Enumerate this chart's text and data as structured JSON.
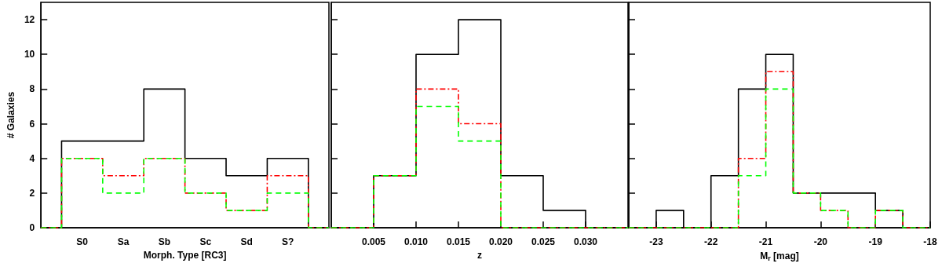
{
  "chart_data": [
    {
      "type": "step",
      "xlabel": "Morph. Type [RC3]",
      "ylabel": "# Galaxies",
      "categories": [
        null,
        "S0",
        "Sa",
        "Sb",
        "Sc",
        "Sd",
        "S?",
        null
      ],
      "ylim": [
        0,
        13
      ],
      "yticks": [
        0,
        2,
        4,
        6,
        8,
        10,
        12
      ],
      "series": [
        {
          "color": "#000000",
          "line_style": "solid",
          "values": [
            0,
            5,
            5,
            8,
            4,
            3,
            4,
            0
          ]
        },
        {
          "color": "#ff0000",
          "line_style": "dashdot",
          "values": [
            0,
            4,
            3,
            4,
            2,
            1,
            3,
            0
          ]
        },
        {
          "color": "#00ff00",
          "line_style": "dashed",
          "values": [
            0,
            4,
            2,
            4,
            2,
            1,
            2,
            0
          ]
        }
      ]
    },
    {
      "type": "histogram",
      "xlabel": "z",
      "bins": [
        0,
        0.005,
        0.01,
        0.015,
        0.02,
        0.025,
        0.03,
        0.035
      ],
      "xlim": [
        0,
        0.035
      ],
      "xticks": [
        0.005,
        {
          "value": 0.01,
          "label": "0.010"
        },
        0.015,
        {
          "value": 0.02,
          "label": "0.020"
        },
        0.025,
        {
          "value": 0.03,
          "label": "0.030"
        }
      ],
      "ylim": [
        0,
        13
      ],
      "yticks": [
        0,
        2,
        4,
        6,
        8,
        10,
        12
      ],
      "tick_labels": "x",
      "series": [
        {
          "color": "#000000",
          "line_style": "solid",
          "values": [
            0,
            3,
            10,
            12,
            3,
            1,
            0
          ]
        },
        {
          "color": "#ff0000",
          "line_style": "dashdot",
          "values": [
            0,
            3,
            8,
            6,
            0,
            0,
            0
          ]
        },
        {
          "color": "#00ff00",
          "line_style": "dashed",
          "values": [
            0,
            3,
            7,
            5,
            0,
            0,
            0
          ]
        }
      ]
    },
    {
      "type": "histogram",
      "xlabel": "M$_{r}$ [mag]",
      "bins": [
        -23.5,
        -23,
        -22.5,
        -22,
        -21.5,
        -21,
        -20.5,
        -20,
        -19.5,
        -19,
        -18.5,
        -18
      ],
      "xlim": [
        -23.5,
        -18
      ],
      "xticks": [
        -23,
        -22,
        -21,
        -20,
        -19,
        -18
      ],
      "ylim": [
        0,
        13
      ],
      "yticks": [
        0,
        2,
        4,
        6,
        8,
        10,
        12
      ],
      "tick_labels": "x",
      "series": [
        {
          "color": "#000000",
          "line_style": "solid",
          "values": [
            0,
            1,
            0,
            3,
            8,
            10,
            2,
            2,
            2,
            1,
            0
          ]
        },
        {
          "color": "#ff0000",
          "line_style": "dashdot",
          "values": [
            0,
            0,
            0,
            0,
            4,
            9,
            2,
            1,
            0,
            1,
            0
          ]
        },
        {
          "color": "#00ff00",
          "line_style": "dashed",
          "values": [
            0,
            0,
            0,
            0,
            3,
            8,
            2,
            1,
            0,
            1,
            0
          ]
        }
      ]
    }
  ]
}
